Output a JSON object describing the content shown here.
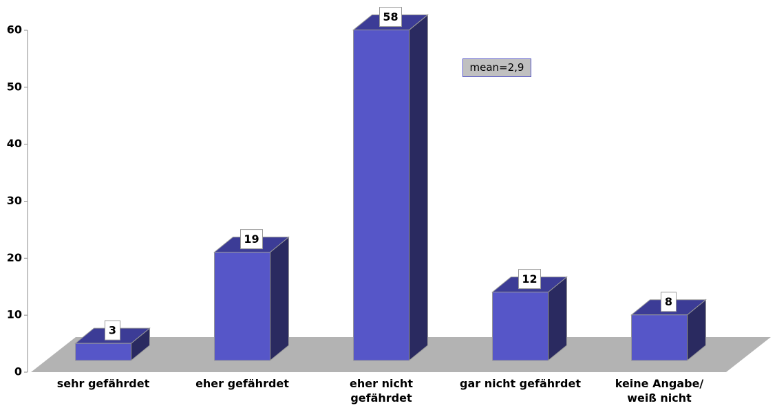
{
  "chart_data": {
    "type": "bar3d",
    "categories": [
      "sehr gefährdet",
      "eher gefährdet",
      "eher nicht\ngefährdet",
      "gar nicht gefährdet",
      "keine Angabe/\nweiß nicht"
    ],
    "values": [
      3,
      19,
      58,
      12,
      8
    ],
    "colors": {
      "front": "#5656c8",
      "top": "#3c3c96",
      "side": "#2a2a60",
      "floor": "#b3b3b3"
    },
    "ylim": [
      0,
      60
    ],
    "yticks": [
      0,
      10,
      20,
      30,
      40,
      50,
      60
    ],
    "annotation": "mean=2,9"
  }
}
